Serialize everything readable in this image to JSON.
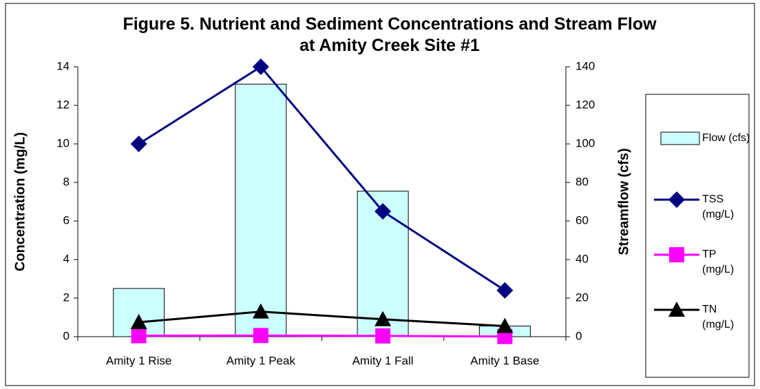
{
  "chart_data": {
    "type": "bar-line",
    "title": "Figure 5. Nutrient and Sediment Concentrations and Stream Flow at Amity Creek Site #1",
    "ylabel": "Concentration (mg/L)",
    "y2label": "Streamflow (cfs)",
    "categories": [
      "Amity 1 Rise",
      "Amity 1 Peak",
      "Amity 1 Fall",
      "Amity 1 Base"
    ],
    "series": [
      {
        "name": "Flow (cfs)",
        "kind": "bar",
        "axis": "y2",
        "color": "#ccffff",
        "values": [
          25,
          131,
          75.5,
          5.5
        ]
      },
      {
        "name": "TSS (mg/L)",
        "kind": "line",
        "marker": "diamond",
        "color": "#000080",
        "values": [
          10,
          14,
          6.5,
          2.4
        ]
      },
      {
        "name": "TP (mg/L)",
        "kind": "line",
        "marker": "square",
        "color": "#ff00ff",
        "values": [
          0.05,
          0.06,
          0.04,
          0.01
        ]
      },
      {
        "name": "TN (mg/L)",
        "kind": "line",
        "marker": "triangle",
        "color": "#000000",
        "values": [
          0.75,
          1.3,
          0.9,
          0.55
        ]
      }
    ],
    "ylim": [
      0,
      14
    ],
    "yticks": [
      0,
      2,
      4,
      6,
      8,
      10,
      12,
      14
    ],
    "y2lim": [
      0,
      140
    ],
    "y2ticks": [
      0,
      20,
      40,
      60,
      80,
      100,
      120,
      140
    ]
  }
}
